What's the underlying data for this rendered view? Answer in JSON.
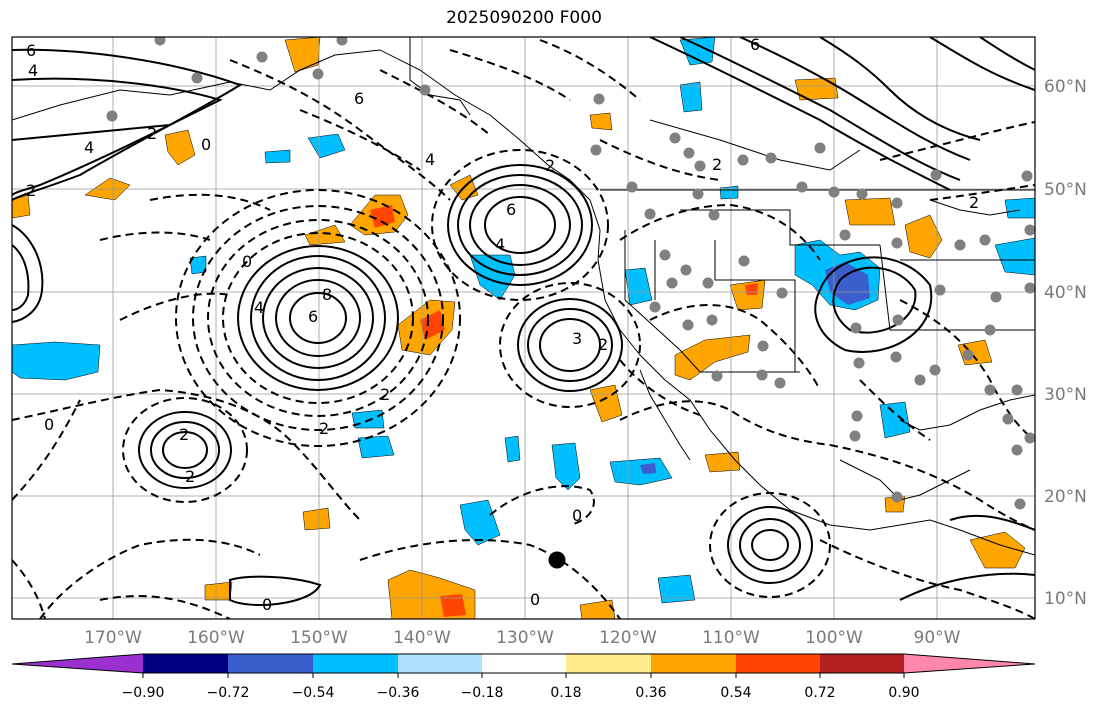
{
  "title": "2025090200 F000",
  "map": {
    "lon_labels": [
      "170°W",
      "160°W",
      "150°W",
      "140°W",
      "130°W",
      "120°W",
      "110°W",
      "100°W",
      "90°W"
    ],
    "lat_labels": [
      "60°N",
      "50°N",
      "40°N",
      "30°N",
      "20°N",
      "10°N"
    ],
    "lon_range": [
      -178,
      -78
    ],
    "lat_range": [
      8,
      65
    ],
    "contour_labels": [
      "6",
      "4",
      "2",
      "0",
      "4",
      "2",
      "6",
      "4",
      "0",
      "6",
      "4",
      "2",
      "8",
      "6",
      "4",
      "2",
      "0",
      "2",
      "2",
      "0",
      "2",
      "2",
      "3",
      "6",
      "2",
      "0",
      "0",
      "2"
    ]
  },
  "colorbar": {
    "levels": [
      "−0.90",
      "−0.72",
      "−0.54",
      "−0.36",
      "−0.18",
      "0.18",
      "0.36",
      "0.54",
      "0.72",
      "0.90"
    ],
    "colors": [
      "#9b30d0",
      "#000080",
      "#3a5fcd",
      "#00bfff",
      "#b0e2ff",
      "#ffffff",
      "#ffec8b",
      "#ffa500",
      "#ff4500",
      "#b22222",
      "#ff88aa"
    ],
    "extend": "both"
  }
}
